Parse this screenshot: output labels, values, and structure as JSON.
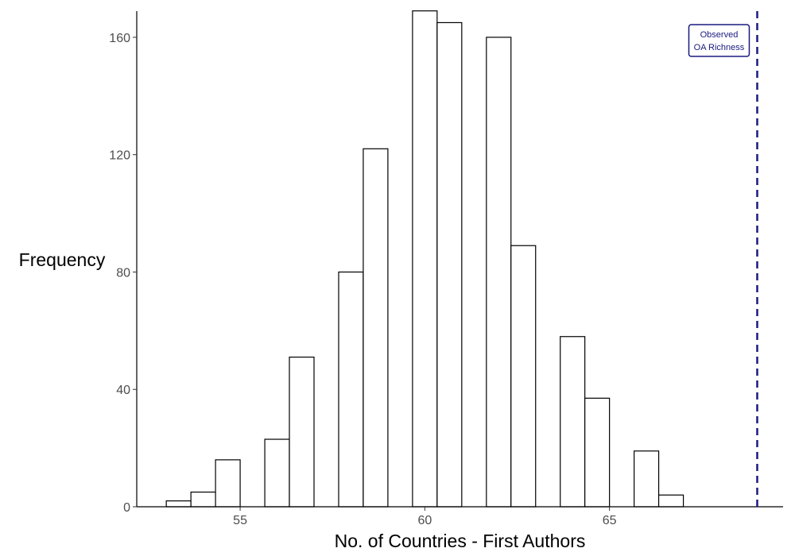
{
  "chart_data": {
    "type": "bar",
    "subtype": "histogram",
    "title": "",
    "xlabel": "No. of Countries - First Authors",
    "ylabel": "Frequency",
    "xlim": [
      52.2,
      69.7
    ],
    "ylim": [
      0,
      170
    ],
    "x_ticks": [
      55,
      60,
      65
    ],
    "y_ticks": [
      0,
      40,
      80,
      120,
      160
    ],
    "bin_width": 0.667,
    "bins": [
      {
        "start": 53.0,
        "end": 53.667,
        "count": 2
      },
      {
        "start": 53.667,
        "end": 54.333,
        "count": 5
      },
      {
        "start": 54.333,
        "end": 55.0,
        "count": 16
      },
      {
        "start": 55.667,
        "end": 56.333,
        "count": 23
      },
      {
        "start": 56.333,
        "end": 57.0,
        "count": 51
      },
      {
        "start": 57.667,
        "end": 58.333,
        "count": 80
      },
      {
        "start": 58.333,
        "end": 59.0,
        "count": 122
      },
      {
        "start": 59.667,
        "end": 60.333,
        "count": 169
      },
      {
        "start": 60.333,
        "end": 61.0,
        "count": 165
      },
      {
        "start": 61.667,
        "end": 62.333,
        "count": 160
      },
      {
        "start": 62.333,
        "end": 63.0,
        "count": 89
      },
      {
        "start": 63.667,
        "end": 64.333,
        "count": 58
      },
      {
        "start": 64.333,
        "end": 65.0,
        "count": 37
      },
      {
        "start": 65.667,
        "end": 66.333,
        "count": 19
      },
      {
        "start": 66.333,
        "end": 67.0,
        "count": 4
      }
    ],
    "reference_line": {
      "x": 69.0,
      "style": "dashed",
      "color": "#1a1a80",
      "label_lines": [
        "Observed",
        "OA Richness"
      ]
    },
    "grid": false,
    "legend": "none",
    "bar_fill": "#ffffff",
    "bar_stroke": "#000000"
  }
}
